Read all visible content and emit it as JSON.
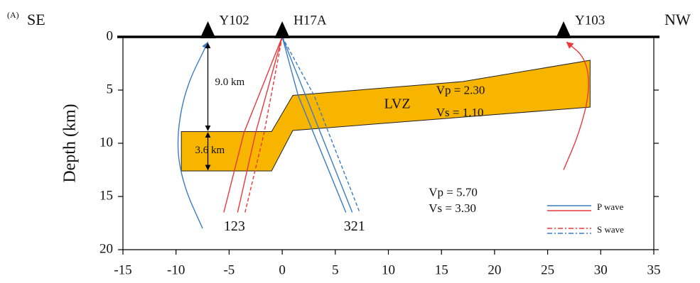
{
  "panel_label": "(A)",
  "chart_data": {
    "type": "section",
    "left_label": "SE",
    "right_label": "NW",
    "ylabel": "Depth (km)",
    "xlim": [
      -15,
      35
    ],
    "xticks": [
      -15,
      -10,
      -5,
      0,
      5,
      10,
      15,
      20,
      25,
      30,
      35
    ],
    "ylim": [
      0,
      20
    ],
    "yticks": [
      0,
      5,
      10,
      15,
      20
    ],
    "inverted_y": true,
    "stations": [
      {
        "name": "Y102",
        "x": -7
      },
      {
        "name": "H17A",
        "x": 0
      },
      {
        "name": "Y103",
        "x": 26.5
      }
    ],
    "lvz": {
      "color": "#f7b500",
      "x": [
        -9.5,
        -1,
        1,
        17,
        29,
        29,
        1,
        -1,
        -9.5
      ],
      "y": [
        8.9,
        8.9,
        5.5,
        4.2,
        2.2,
        6.6,
        8.8,
        12.6,
        12.6
      ]
    },
    "series": [
      {
        "name": "P wave",
        "dashed": false,
        "lines": [
          {
            "color": "#3a7cc4",
            "x": [
              -7.5,
              -9.3,
              -10,
              -9.2,
              -7
            ],
            "y": [
              18,
              14,
              10,
              5,
              0.5
            ]
          },
          {
            "color": "#e8383d",
            "x": [
              -5.5,
              -3.6,
              0
            ],
            "y": [
              16.5,
              9,
              0
            ]
          },
          {
            "color": "#e8383d",
            "x": [
              -4.2,
              -2.5,
              0
            ],
            "y": [
              16.5,
              9,
              0
            ]
          },
          {
            "color": "#3a7cc4",
            "x": [
              0,
              1.5,
              6
            ],
            "y": [
              0,
              5.5,
              16.5
            ]
          },
          {
            "color": "#3a7cc4",
            "x": [
              0,
              2.2,
              6.6
            ],
            "y": [
              0,
              5.5,
              16.5
            ]
          },
          {
            "color": "#e8383d",
            "x": [
              26.5,
              28,
              29,
              28.6,
              26.8
            ],
            "y": [
              12.5,
              9,
              5,
              2,
              0.5
            ]
          }
        ]
      },
      {
        "name": "S wave",
        "dashed": true,
        "lines": [
          {
            "color": "#e8383d",
            "x": [
              -3.5,
              -1.7,
              0
            ],
            "y": [
              16.5,
              9,
              0
            ]
          },
          {
            "color": "#3a7cc4",
            "x": [
              0,
              3,
              7.3
            ],
            "y": [
              0,
              5.5,
              16.5
            ]
          }
        ]
      }
    ],
    "annotations": [
      "9.0 km",
      "3.6 km",
      "LVZ",
      "Vp = 2.30",
      "Vs = 1.10",
      "Vp = 5.70",
      "Vs  = 3.30",
      "123",
      "321"
    ]
  }
}
